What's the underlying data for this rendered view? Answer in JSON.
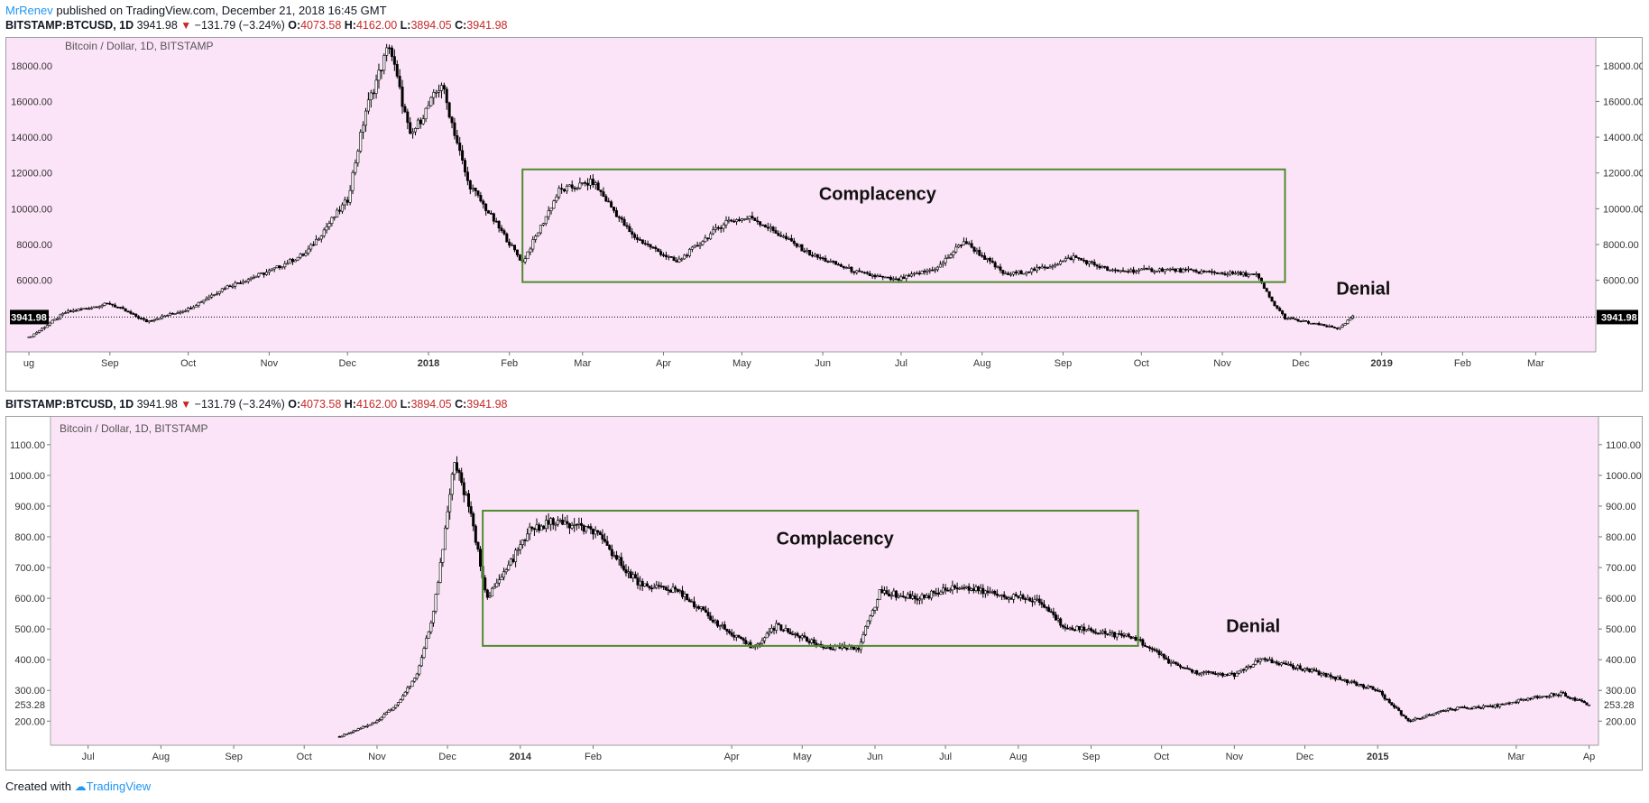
{
  "header": {
    "author": "MrRenev",
    "published_text": "published on TradingView.com, December 21, 2018 16:45 GMT"
  },
  "footer": {
    "created_with": "Created with",
    "brand": "TradingView"
  },
  "colors": {
    "plot_bg": "#fce4f8",
    "box": "#4e8a2e",
    "candle": "#000000",
    "change_down": "#c62828"
  },
  "chart_data": [
    {
      "type": "candlestick",
      "symbol": "BITSTAMP:BTCUSD, 1D",
      "last": "3941.98",
      "change": "−131.79 (−3.24%)",
      "open": "4073.58",
      "high": "4162.00",
      "low": "3894.05",
      "close": "3941.98",
      "title": "Bitcoin / Dollar, 1D, BITSTAMP",
      "price_label": "3941.98",
      "ylim": [
        2400,
        19200
      ],
      "yticks": [
        18000,
        16000,
        14000,
        12000,
        10000,
        8000,
        6000
      ],
      "ytick_labels": [
        "18000.00",
        "16000.00",
        "14000.00",
        "12000.00",
        "10000.00",
        "8000.00",
        "6000.00"
      ],
      "x_tick_labels": [
        "ug",
        "Sep",
        "Oct",
        "Nov",
        "Dec",
        "2018",
        "Feb",
        "Mar",
        "Apr",
        "May",
        "Jun",
        "Jul",
        "Aug",
        "Sep",
        "Oct",
        "Nov",
        "Dec",
        "2019",
        "Feb",
        "Mar"
      ],
      "bold_x_labels": [
        "2018",
        "2019"
      ],
      "series": [
        {
          "x": [
            "2017-08-01",
            "2017-08-15",
            "2017-09-01",
            "2017-09-15",
            "2017-10-01",
            "2017-10-15",
            "2017-11-01",
            "2017-11-15",
            "2017-12-01",
            "2017-12-08",
            "2017-12-17",
            "2017-12-25",
            "2018-01-06",
            "2018-01-16",
            "2018-02-06",
            "2018-02-20",
            "2018-03-05",
            "2018-03-20",
            "2018-04-06",
            "2018-04-25",
            "2018-05-05",
            "2018-05-28",
            "2018-06-15",
            "2018-06-29",
            "2018-07-15",
            "2018-07-25",
            "2018-08-10",
            "2018-08-25",
            "2018-09-05",
            "2018-09-20",
            "2018-10-10",
            "2018-11-01",
            "2018-11-14",
            "2018-11-20",
            "2018-11-25",
            "2018-12-05",
            "2018-12-15",
            "2018-12-21"
          ],
          "y": [
            2800,
            4200,
            4700,
            3700,
            4400,
            5600,
            6500,
            7500,
            10500,
            15500,
            19200,
            14000,
            17000,
            11500,
            7000,
            11000,
            11500,
            8500,
            7000,
            9300,
            9500,
            7400,
            6400,
            6000,
            6700,
            8200,
            6300,
            6700,
            7300,
            6500,
            6600,
            6400,
            6300,
            4800,
            3900,
            3600,
            3300,
            3941.98
          ]
        }
      ],
      "annotations": [
        {
          "type": "rect",
          "x0": "2018-02-06",
          "x1": "2018-11-25",
          "y0": 5900,
          "y1": 12200
        },
        {
          "type": "text",
          "text": "Complacency",
          "x": "2018-06-22",
          "y": 10500
        },
        {
          "type": "text",
          "text": "Denial",
          "x": "2018-12-25",
          "y": 5200
        }
      ]
    },
    {
      "type": "candlestick",
      "symbol": "BITSTAMP:BTCUSD, 1D",
      "last": "3941.98",
      "change": "−131.79 (−3.24%)",
      "open": "4073.58",
      "high": "4162.00",
      "low": "3894.05",
      "close": "3941.98",
      "title": "Bitcoin / Dollar, 1D, BITSTAMP",
      "price_label": "253.28",
      "ylim": [
        145,
        1170
      ],
      "yticks": [
        1100,
        1000,
        900,
        800,
        700,
        600,
        500,
        400,
        300,
        200
      ],
      "ytick_labels": [
        "1100.00",
        "1000.00",
        "900.00",
        "800.00",
        "700.00",
        "600.00",
        "500.00",
        "400.00",
        "300.00",
        "200.00"
      ],
      "x_tick_labels": [
        "Jul",
        "Aug",
        "Sep",
        "Oct",
        "Nov",
        "Dec",
        "2014",
        "Feb",
        "Apr",
        "May",
        "Jun",
        "Jul",
        "Aug",
        "Sep",
        "Oct",
        "Nov",
        "Dec",
        "2015",
        "Mar",
        "Ap"
      ],
      "bold_x_labels": [
        "2014",
        "2015"
      ],
      "series": [
        {
          "x": [
            "2013-10-16",
            "2013-11-01",
            "2013-11-10",
            "2013-11-18",
            "2013-11-25",
            "2013-12-04",
            "2013-12-10",
            "2013-12-18",
            "2013-12-25",
            "2014-01-05",
            "2014-01-15",
            "2014-02-01",
            "2014-02-20",
            "2014-03-10",
            "2014-04-01",
            "2014-04-10",
            "2014-04-20",
            "2014-05-10",
            "2014-05-25",
            "2014-06-03",
            "2014-06-20",
            "2014-07-05",
            "2014-07-25",
            "2014-08-10",
            "2014-08-20",
            "2014-09-05",
            "2014-09-20",
            "2014-10-05",
            "2014-10-15",
            "2014-11-01",
            "2014-11-12",
            "2014-11-25",
            "2014-12-15",
            "2015-01-01",
            "2015-01-14",
            "2015-02-01",
            "2015-02-20",
            "2015-03-10",
            "2015-03-20",
            "2015-04-01"
          ],
          "y": [
            150,
            200,
            260,
            350,
            550,
            1050,
            900,
            600,
            680,
            820,
            850,
            820,
            650,
            620,
            480,
            440,
            510,
            440,
            440,
            620,
            600,
            640,
            610,
            590,
            510,
            490,
            470,
            390,
            360,
            350,
            400,
            380,
            340,
            300,
            200,
            240,
            250,
            280,
            290,
            253.28
          ]
        }
      ],
      "annotations": [
        {
          "type": "rect",
          "x0": "2013-12-16",
          "x1": "2014-09-21",
          "y0": 445,
          "y1": 885
        },
        {
          "type": "text",
          "text": "Complacency",
          "x": "2014-05-15",
          "y": 775
        },
        {
          "type": "text",
          "text": "Denial",
          "x": "2014-11-09",
          "y": 490
        }
      ]
    }
  ]
}
